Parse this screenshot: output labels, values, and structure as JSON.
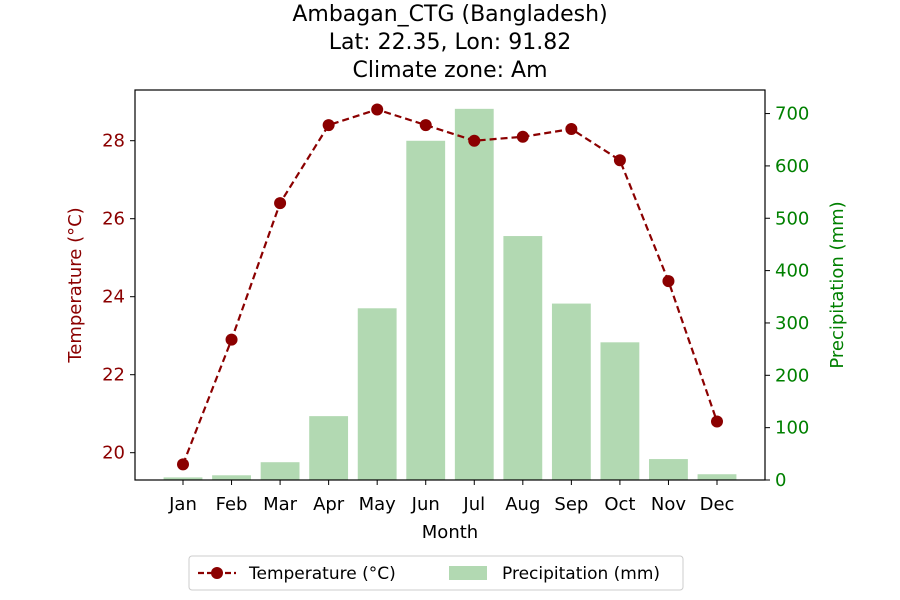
{
  "colors": {
    "temperature": "#8b0000",
    "precipitation_bar": "#b2d9b2",
    "precipitation_axis": "#008000",
    "axis": "#000000"
  },
  "chart_data": {
    "type": "bar",
    "title": [
      "Ambagan_CTG (Bangladesh)",
      "Lat: 22.35, Lon: 91.82",
      "Climate zone: Am"
    ],
    "xlabel": "Month",
    "ylabel_left": "Temperature (°C)",
    "ylabel_right": "Precipitation (mm)",
    "categories": [
      "Jan",
      "Feb",
      "Mar",
      "Apr",
      "May",
      "Jun",
      "Jul",
      "Aug",
      "Sep",
      "Oct",
      "Nov",
      "Dec"
    ],
    "series": [
      {
        "name": "Temperature (°C)",
        "type": "line",
        "axis": "left",
        "style": "dashed-with-circle-markers",
        "values": [
          19.7,
          22.9,
          26.4,
          28.4,
          28.8,
          28.4,
          28.0,
          28.1,
          28.3,
          27.5,
          24.4,
          20.8
        ]
      },
      {
        "name": "Precipitation (mm)",
        "type": "bar",
        "axis": "right",
        "values": [
          5,
          9,
          34,
          122,
          328,
          648,
          709,
          466,
          337,
          263,
          40,
          11
        ]
      }
    ],
    "ylim_left": [
      19.3,
      29.3
    ],
    "yticks_left": [
      "20",
      "22",
      "24",
      "26",
      "28"
    ],
    "ylim_right": [
      0,
      745
    ],
    "yticks_right": [
      "0",
      "100",
      "200",
      "300",
      "400",
      "500",
      "600",
      "700"
    ],
    "grid": false,
    "legend_placement": "bottom-center"
  }
}
